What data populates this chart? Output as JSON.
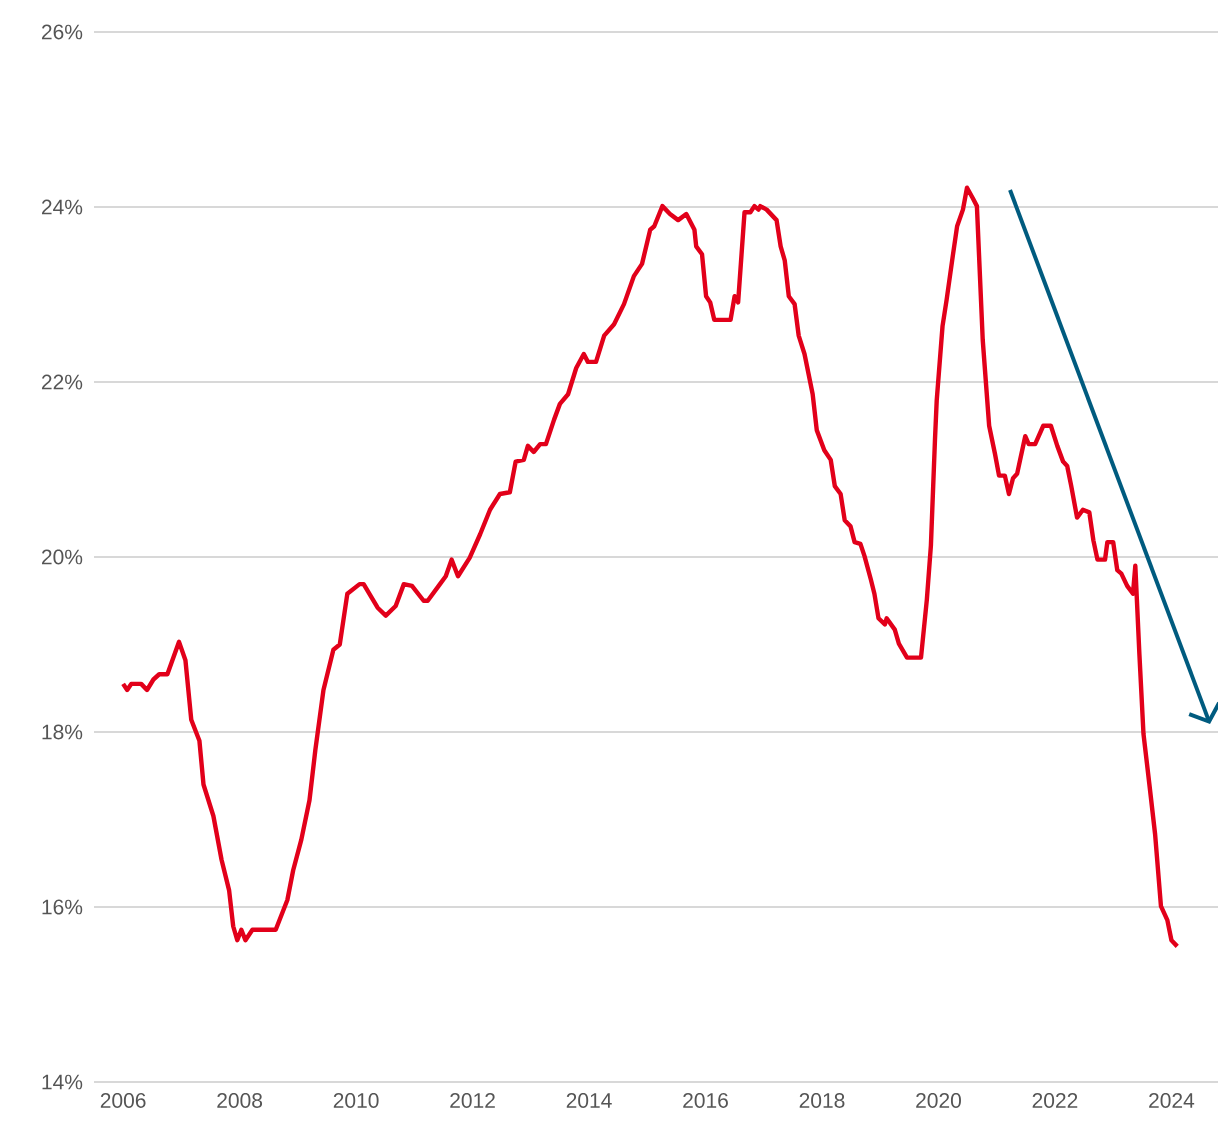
{
  "chart_data": {
    "type": "line",
    "x": [
      2006.0,
      2006.07,
      2006.14,
      2006.31,
      2006.41,
      2006.52,
      2006.62,
      2006.76,
      2006.96,
      2007.07,
      2007.17,
      2007.31,
      2007.38,
      2007.55,
      2007.69,
      2007.82,
      2007.89,
      2007.96,
      2008.03,
      2008.1,
      2008.22,
      2008.62,
      2008.82,
      2008.92,
      2009.06,
      2009.2,
      2009.3,
      2009.44,
      2009.61,
      2009.72,
      2009.85,
      2010.06,
      2010.13,
      2010.37,
      2010.51,
      2010.68,
      2010.82,
      2010.96,
      2011.16,
      2011.23,
      2011.44,
      2011.54,
      2011.64,
      2011.75,
      2011.95,
      2012.13,
      2012.3,
      2012.47,
      2012.64,
      2012.74,
      2012.88,
      2012.95,
      2013.05,
      2013.16,
      2013.26,
      2013.4,
      2013.5,
      2013.64,
      2013.78,
      2013.91,
      2013.98,
      2014.12,
      2014.26,
      2014.43,
      2014.6,
      2014.77,
      2014.91,
      2015.05,
      2015.12,
      2015.26,
      2015.39,
      2015.53,
      2015.67,
      2015.81,
      2015.84,
      2015.94,
      2016.01,
      2016.08,
      2016.15,
      2016.43,
      2016.5,
      2016.56,
      2016.67,
      2016.77,
      2016.84,
      2016.91,
      2016.94,
      2017.05,
      2017.22,
      2017.29,
      2017.36,
      2017.43,
      2017.53,
      2017.6,
      2017.7,
      2017.84,
      2017.91,
      2018.04,
      2018.15,
      2018.22,
      2018.32,
      2018.39,
      2018.49,
      2018.56,
      2018.66,
      2018.73,
      2018.84,
      2018.9,
      2018.97,
      2019.08,
      2019.11,
      2019.25,
      2019.32,
      2019.46,
      2019.7,
      2019.8,
      2019.87,
      2019.94,
      2019.97,
      2020.07,
      2020.14,
      2020.25,
      2020.32,
      2020.42,
      2020.49,
      2020.59,
      2020.66,
      2020.76,
      2020.87,
      2020.97,
      2021.04,
      2021.14,
      2021.21,
      2021.28,
      2021.35,
      2021.49,
      2021.55,
      2021.66,
      2021.8,
      2021.93,
      2022.04,
      2022.14,
      2022.21,
      2022.28,
      2022.38,
      2022.48,
      2022.59,
      2022.66,
      2022.73,
      2022.86,
      2022.9,
      2023.0,
      2023.07,
      2023.14,
      2023.24,
      2023.34,
      2023.38,
      2023.45,
      2023.52,
      2023.62,
      2023.72,
      2023.82,
      2023.93,
      2024.0,
      2024.1
    ],
    "series": [
      {
        "color": "#e2001a",
        "values": [
          18.55,
          18.48,
          18.55,
          18.55,
          18.48,
          18.6,
          18.66,
          18.66,
          19.03,
          18.82,
          18.14,
          17.9,
          17.4,
          17.04,
          16.54,
          16.19,
          15.78,
          15.62,
          15.74,
          15.62,
          15.74,
          15.74,
          16.08,
          16.42,
          16.77,
          17.22,
          17.79,
          18.48,
          18.94,
          19.0,
          19.58,
          19.69,
          19.69,
          19.42,
          19.33,
          19.44,
          19.69,
          19.67,
          19.5,
          19.5,
          19.69,
          19.78,
          19.97,
          19.78,
          19.99,
          20.26,
          20.54,
          20.72,
          20.74,
          21.09,
          21.11,
          21.27,
          21.2,
          21.29,
          21.29,
          21.57,
          21.75,
          21.86,
          22.16,
          22.32,
          22.23,
          22.23,
          22.53,
          22.66,
          22.89,
          23.21,
          23.35,
          23.74,
          23.78,
          24.01,
          23.92,
          23.85,
          23.92,
          23.74,
          23.55,
          23.46,
          22.98,
          22.91,
          22.71,
          22.71,
          22.98,
          22.91,
          23.94,
          23.94,
          24.01,
          23.97,
          24.01,
          23.97,
          23.85,
          23.55,
          23.39,
          22.98,
          22.89,
          22.53,
          22.32,
          21.86,
          21.45,
          21.22,
          21.11,
          20.81,
          20.72,
          20.42,
          20.35,
          20.17,
          20.15,
          20.01,
          19.74,
          19.58,
          19.3,
          19.23,
          19.3,
          19.17,
          19.01,
          18.85,
          18.85,
          19.51,
          20.13,
          21.34,
          21.79,
          22.64,
          22.94,
          23.46,
          23.78,
          23.97,
          24.22,
          24.1,
          24.01,
          22.48,
          21.5,
          21.18,
          20.93,
          20.93,
          20.72,
          20.9,
          20.95,
          21.38,
          21.29,
          21.29,
          21.5,
          21.5,
          21.27,
          21.09,
          21.04,
          20.81,
          20.45,
          20.54,
          20.51,
          20.19,
          19.97,
          19.97,
          20.17,
          20.17,
          19.85,
          19.81,
          19.67,
          19.58,
          19.9,
          18.89,
          17.98,
          17.41,
          16.83,
          16.01,
          15.85,
          15.62,
          15.55
        ]
      }
    ],
    "xlim": [
      2005.5,
      2024.8
    ],
    "xticks": [
      2006,
      2008,
      2010,
      2012,
      2014,
      2016,
      2018,
      2020,
      2022,
      2024
    ],
    "ylim": [
      14,
      26
    ],
    "yticks": [
      {
        "value": 14,
        "label": "14%"
      },
      {
        "value": 16,
        "label": "16%"
      },
      {
        "value": 18,
        "label": "18%"
      },
      {
        "value": 20,
        "label": "20%"
      },
      {
        "value": 22,
        "label": "22%"
      },
      {
        "value": 24,
        "label": "24%"
      },
      {
        "value": 26,
        "label": "26%"
      }
    ],
    "grid": "y",
    "marker": "none",
    "line_style": "solid"
  }
}
